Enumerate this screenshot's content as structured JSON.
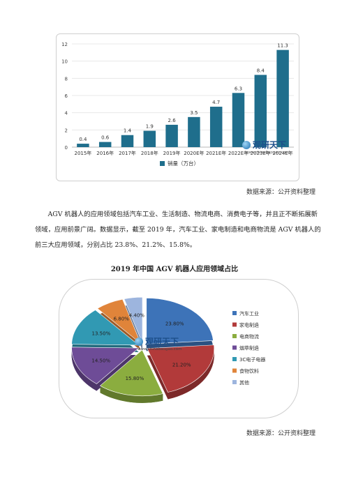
{
  "bar_chart": {
    "source": "数据来源：公开资料整理",
    "watermark": {
      "name": "观研天下",
      "url": "www.chinabaogao.com"
    }
  },
  "paragraph": "AGV 机器人的应用领域包括汽车工业、生活制造、物流电商、消费电子等，并且正不断拓展新领域，应用前景广阔。数据显示，截至 2019 年，汽车工业、家电制造和电商物流是 AGV 机器人的前三大应用领域，分别占比 23.8%、21.2%、15.8%。",
  "pie_chart": {
    "title": "2019 年中国 AGV 机器人应用领域占比",
    "source": "数据来源：公开资料整理",
    "watermark": {
      "name": "观研天下",
      "url": "www.chinabaogao.com"
    }
  },
  "chart_data": [
    {
      "type": "bar",
      "categories": [
        "2015年",
        "2016年",
        "2017年",
        "2018年",
        "2019年",
        "2020E年",
        "2021E年",
        "2022E年",
        "2023E年",
        "2024E年"
      ],
      "series": [
        {
          "name": "销量（万台）",
          "values": [
            0.4,
            0.6,
            1.4,
            1.9,
            2.6,
            3.5,
            4.7,
            6.3,
            8.4,
            11.3
          ],
          "color": "#1f6e8c"
        }
      ],
      "ylim": [
        0,
        12
      ],
      "yticks": [
        0,
        2,
        4,
        6,
        8,
        10,
        12
      ],
      "grid": true,
      "legend": "bottom"
    },
    {
      "type": "pie",
      "title": "2019 年中国 AGV 机器人应用领域占比",
      "labels": [
        "汽车工业",
        "家电制造",
        "电商物流",
        "烟草制造",
        "3C电子电器",
        "食物饮料",
        "其他"
      ],
      "values": [
        23.8,
        21.2,
        15.8,
        14.5,
        13.5,
        6.8,
        4.4
      ],
      "value_labels": [
        "23.80%",
        "21.20%",
        "15.80%",
        "14.50%",
        "13.50%",
        "6.80%",
        "4.40%"
      ],
      "colors": [
        "#3d73b8",
        "#b23a3a",
        "#8bad3f",
        "#6e4c97",
        "#3199b3",
        "#e0843a",
        "#9db5de"
      ],
      "legend": "right"
    }
  ]
}
